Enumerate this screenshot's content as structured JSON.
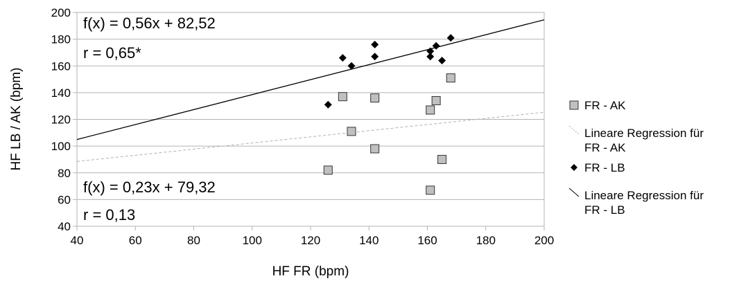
{
  "chart_data": {
    "type": "scatter",
    "xlabel": "HF FR (bpm)",
    "ylabel": "HF LB / AK (bpm)",
    "xlim": [
      40,
      200
    ],
    "ylim": [
      40,
      200
    ],
    "x_ticks": [
      40,
      60,
      80,
      100,
      120,
      140,
      160,
      180,
      200
    ],
    "y_ticks": [
      40,
      60,
      80,
      100,
      120,
      140,
      160,
      180,
      200
    ],
    "grid": "horizontal",
    "legend_position": "right",
    "series": [
      {
        "name": "FR - AK",
        "marker": "square",
        "color": "#c0c0c0",
        "points": [
          [
            126,
            82
          ],
          [
            131,
            137
          ],
          [
            134,
            111
          ],
          [
            142,
            136
          ],
          [
            142,
            98
          ],
          [
            161,
            127
          ],
          [
            161,
            67
          ],
          [
            163,
            134
          ],
          [
            165,
            90
          ],
          [
            168,
            151
          ]
        ]
      },
      {
        "name": "FR - LB",
        "marker": "diamond",
        "color": "#000000",
        "points": [
          [
            126,
            131
          ],
          [
            131,
            166
          ],
          [
            134,
            160
          ],
          [
            142,
            176
          ],
          [
            142,
            167
          ],
          [
            161,
            171
          ],
          [
            161,
            167
          ],
          [
            163,
            175
          ],
          [
            165,
            164
          ],
          [
            168,
            181
          ]
        ]
      }
    ],
    "trendlines": [
      {
        "name": "Lineare Regression für FR - AK",
        "slope": 0.23,
        "intercept": 79.32,
        "color": "#b0b0b0",
        "dashed": true
      },
      {
        "name": "Lineare Regression für FR - LB",
        "slope": 0.56,
        "intercept": 82.52,
        "color": "#000000",
        "dashed": false
      }
    ],
    "annotations": {
      "lb_equation": "f(x) = 0,56x + 82,52",
      "lb_r": "r = 0,65*",
      "ak_equation": "f(x) = 0,23x + 79,32",
      "ak_r": "r = 0,13"
    },
    "legend": [
      {
        "lines": [
          "FR - AK"
        ],
        "symbol": "square"
      },
      {
        "lines": [
          "Lineare Regression für",
          "FR - AK"
        ],
        "symbol": "dashed-line"
      },
      {
        "lines": [
          "FR - LB"
        ],
        "symbol": "diamond"
      },
      {
        "lines": [
          "Lineare Regression für",
          "FR - LB"
        ],
        "symbol": "solid-line"
      }
    ]
  }
}
